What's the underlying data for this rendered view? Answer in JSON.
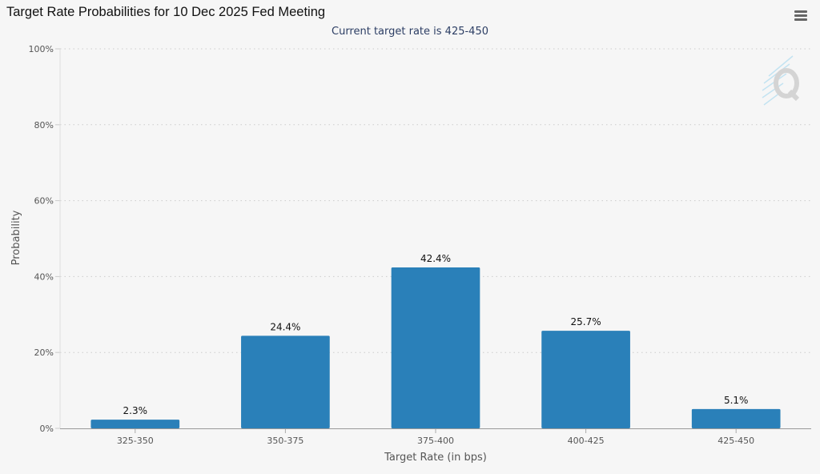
{
  "header": {
    "title": "Target Rate Probabilities for 10 Dec 2025 Fed Meeting",
    "menu_icon": "hamburger-menu-icon"
  },
  "chart_data": {
    "type": "bar",
    "title": "Target Rate Probabilities for 10 Dec 2025 Fed Meeting",
    "subtitle": "Current target rate is 425-450",
    "categories": [
      "325-350",
      "350-375",
      "375-400",
      "400-425",
      "425-450"
    ],
    "values": [
      2.3,
      24.4,
      42.4,
      25.7,
      5.1
    ],
    "data_labels": [
      "2.3%",
      "24.4%",
      "42.4%",
      "25.7%",
      "5.1%"
    ],
    "xlabel": "Target Rate (in bps)",
    "ylabel": "Probability",
    "ylim": [
      0,
      100
    ],
    "y_ticks": [
      0,
      20,
      40,
      60,
      80,
      100
    ],
    "y_tick_labels": [
      "0%",
      "20%",
      "40%",
      "60%",
      "80%",
      "100%"
    ],
    "grid": true,
    "legend": "none",
    "bar_color": "#2a80b9"
  },
  "watermark": {
    "icon": "quikstrike-logo-icon",
    "color": "#8ccbe8"
  }
}
